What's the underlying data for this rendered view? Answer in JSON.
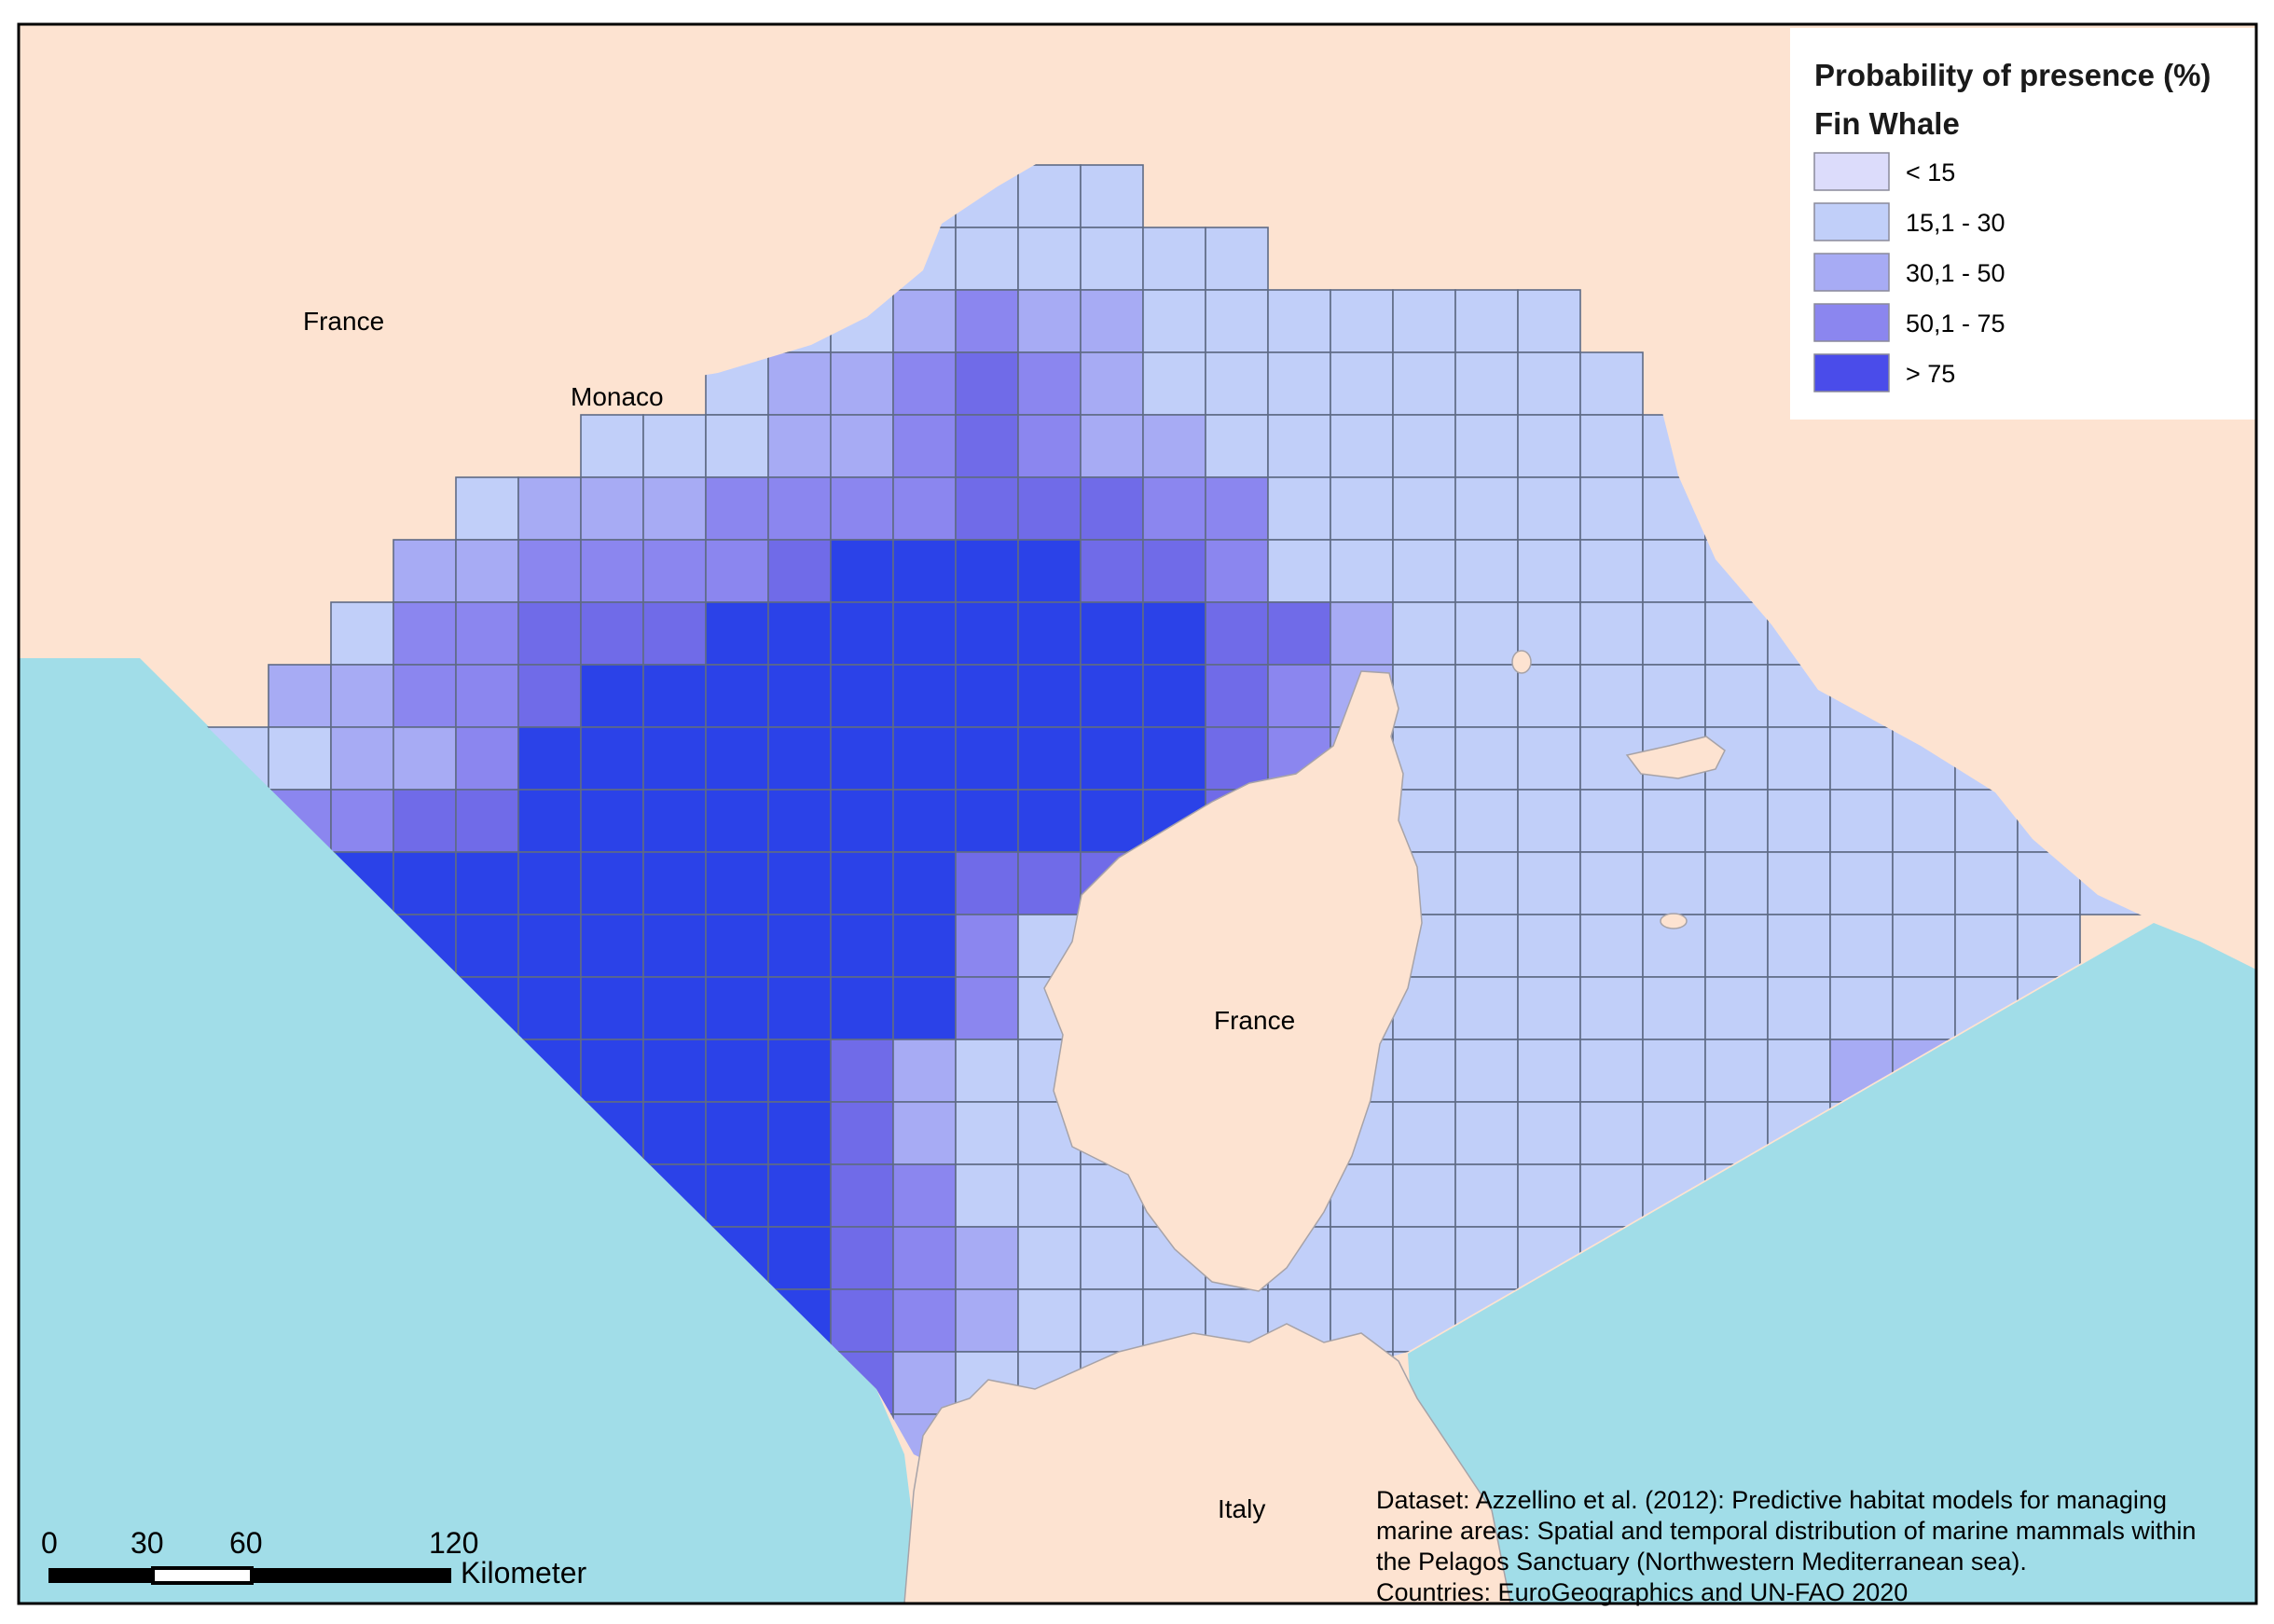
{
  "colors": {
    "land": "#fde3d1",
    "sea_outside": "#a1dde8",
    "class_lt15": "#dcdcfb",
    "class_15_30": "#c1cff9",
    "class_30_50": "#a7abf4",
    "class_50_75": "#8b86ef",
    "class_gt75": "#2b42e8",
    "class_60_75_dark": "#706be8"
  },
  "places": {
    "france_north": "France",
    "monaco": "Monaco",
    "france_corsica": "France",
    "italy": "Italy"
  },
  "legend": {
    "title": "Probability of presence (%)",
    "species": "Fin Whale",
    "items": [
      {
        "label": "< 15",
        "color": "#dcdcfb"
      },
      {
        "label": "15,1 - 30",
        "color": "#c1cff9"
      },
      {
        "label": "30,1 - 50",
        "color": "#a7abf4"
      },
      {
        "label": "50,1 - 75",
        "color": "#8b86ef"
      },
      {
        "label": "> 75",
        "color": "#4a4cea"
      }
    ]
  },
  "scale_bar": {
    "ticks": [
      "0",
      "30",
      "60",
      "120"
    ],
    "unit": "Kilometer"
  },
  "credits": {
    "lines": [
      "Dataset: Azzellino et al. (2012): Predictive habitat models for managing",
      "marine areas: Spatial and temporal distribution of marine mammals within",
      "the Pelagos Sanctuary (Northwestern Mediterranean sea).",
      "Countries: EuroGeographics and UN-FAO 2020"
    ]
  },
  "grid_classes": [
    "....................................",
    "..............AAAA..................",
    "..............AAAAAA................",
    "...........AAABCBBAAAAAAA...........",
    "...........ABBCDCBAAAAAAAA..........",
    ".........AAABBCDCBBAAAAAAAA.........",
    ".......ABBBCCCCDDDCCAAAAAAAA........",
    "......BBCCCCDEEEEDDCAAAAAAAAA.......",
    ".....ACCDDDEEEEEEEEDDBAAAAAAAAA.....",
    "....BBCCDEEEEEEEEEEDCBAAAAAAAAAA....",
    "...AABBCEEEEEEEEEEEDCBAAAAAAAAAAA...",
    "...BCCDDEEEEEEEEEEEDCAAAAAAAAAAAAA..",
    "....EEEEEEEEEEEDDDCCAAAAAAAAAAAAAA..",
    "....EEEEEEEEEEECAAAAAAAAAAAAAAAAA...",
    "......EEEEEEEEECAAAAAAAAAAAAAAAAA...",
    ".......EEEEEEDBAAAAAAAAAAAAAABBA....",
    "........EEEEEDBAAAAAAAAAAAAAAAAA....",
    ".........EEEEDCAAAAAAAAAAAAAACB.....",
    "..........EEEDCBAAAAAAAAAAAAAC......",
    "...........EEDCBAAAAAAAAAAA.........",
    "............EDBAAAAAAAAAAA..........",
    ".............DBAAAAAAAAAA...........",
    "..............AAAAAA................"
  ]
}
